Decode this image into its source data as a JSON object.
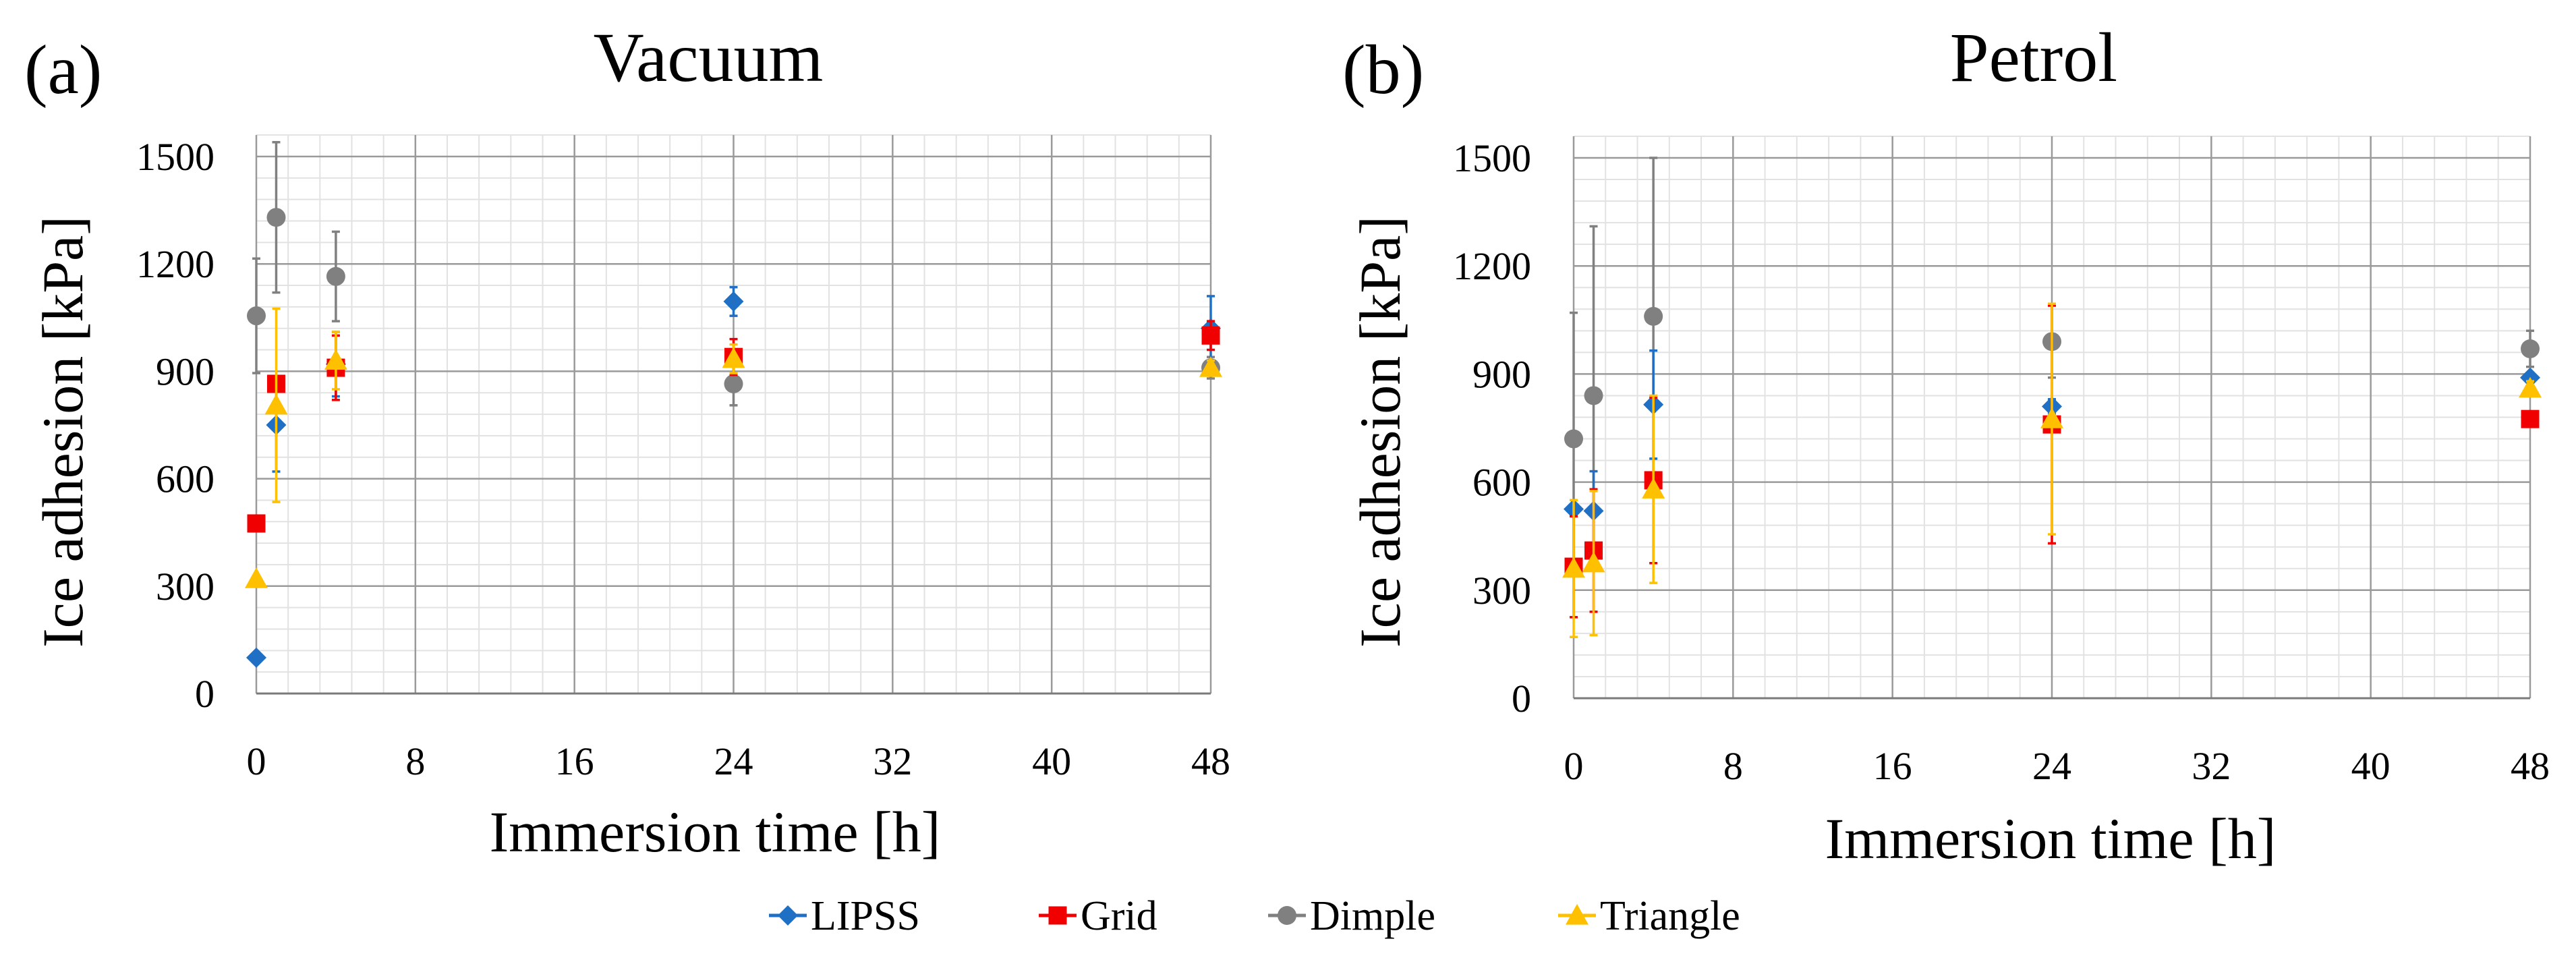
{
  "legend": {
    "items": [
      {
        "name": "LIPSS",
        "marker": "diamond",
        "color": "#1F6FC5"
      },
      {
        "name": "Grid",
        "marker": "square",
        "color": "#F00000"
      },
      {
        "name": "Dimple",
        "marker": "circle",
        "color": "#808080"
      },
      {
        "name": "Triangle",
        "marker": "triangle",
        "color": "#FFC000"
      }
    ]
  },
  "chart_data": [
    {
      "type": "scatter",
      "panel_label": "(a)",
      "title": "Vacuum",
      "xlabel": "Immersion time [h]",
      "ylabel": "Ice adhesion [kPa]",
      "xlim": [
        0,
        48
      ],
      "ylim": [
        0,
        1500
      ],
      "xticks": [
        "0",
        "8",
        "16",
        "24",
        "32",
        "40",
        "48"
      ],
      "yticks": [
        "0",
        "300",
        "600",
        "900",
        "1200",
        "1500"
      ],
      "grid": true,
      "series": [
        {
          "name": "LIPSS",
          "x": [
            0,
            1,
            4,
            24,
            48
          ],
          "y": [
            100,
            750,
            920,
            1095,
            1020
          ],
          "err": [
            0,
            130,
            90,
            40,
            90
          ]
        },
        {
          "name": "Grid",
          "x": [
            0,
            1,
            4,
            24,
            48
          ],
          "y": [
            475,
            865,
            910,
            940,
            1000
          ],
          "err": [
            0,
            0,
            90,
            50,
            40
          ]
        },
        {
          "name": "Dimple",
          "x": [
            0,
            1,
            4,
            24,
            48
          ],
          "y": [
            1055,
            1330,
            1165,
            865,
            910
          ],
          "err": [
            160,
            210,
            125,
            60,
            30
          ]
        },
        {
          "name": "Triangle",
          "x": [
            0,
            1,
            4,
            24,
            48
          ],
          "y": [
            320,
            805,
            930,
            935,
            910
          ],
          "err": [
            0,
            270,
            80,
            40,
            20
          ]
        }
      ]
    },
    {
      "type": "scatter",
      "panel_label": "(b)",
      "title": "Petrol",
      "xlabel": "Immersion time [h]",
      "ylabel": "Ice adhesion [kPa]",
      "xlim": [
        0,
        48
      ],
      "ylim": [
        0,
        1500
      ],
      "xticks": [
        "0",
        "8",
        "16",
        "24",
        "32",
        "40",
        "48"
      ],
      "yticks": [
        "0",
        "300",
        "600",
        "900",
        "1200",
        "1500"
      ],
      "grid": true,
      "series": [
        {
          "name": "LIPSS",
          "x": [
            0,
            1,
            4,
            24,
            48
          ],
          "y": [
            525,
            520,
            815,
            810,
            890
          ],
          "err": [
            0,
            110,
            150,
            20,
            10
          ]
        },
        {
          "name": "Grid",
          "x": [
            0,
            1,
            4,
            24,
            48
          ],
          "y": [
            365,
            410,
            605,
            760,
            775
          ],
          "err": [
            140,
            170,
            230,
            330,
            0
          ]
        },
        {
          "name": "Dimple",
          "x": [
            0,
            1,
            4,
            24,
            48
          ],
          "y": [
            720,
            840,
            1060,
            990,
            970
          ],
          "err": [
            350,
            470,
            440,
            100,
            50
          ]
        },
        {
          "name": "Triangle",
          "x": [
            0,
            1,
            4,
            24,
            48
          ],
          "y": [
            360,
            375,
            580,
            775,
            860
          ],
          "err": [
            190,
            200,
            260,
            320,
            20
          ]
        }
      ]
    }
  ]
}
